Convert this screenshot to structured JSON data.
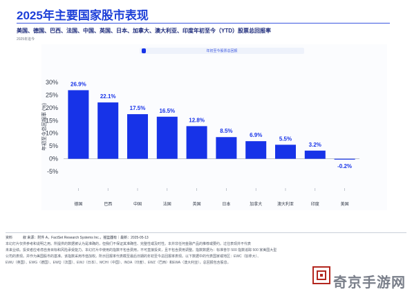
{
  "header": {
    "title": "2025年主要国家股市表现",
    "subtitle": "美国、德国、巴西、法国、中国、英国、日本、加拿大、澳大利亚、印度年初至今（YTD）股票总回报率",
    "source_note": "2025年迄今"
  },
  "footer": {
    "source": "资料　　　叙 来源：附件 A，FactSet Research Systems Inc.，摇篮器有｜最新：2025-05-13",
    "line1": "本幻灯片仅供参考和说明之用。所提供的数据被认为是准确的，但我们不保证其准确性、完整性或及时性。本并非任何金融产品的推荐或要约。过往表现并不代表",
    "line2": "未来业绩。投资者应考虑自身目标和风险承受能力。本幻灯片中使用的指数不包含费用，不可直接投资，且不包含费用调整。指数数据为：标准普尔 500 指数追踪 500 家美国大型",
    "line3": "公司的表现。并作为美国股市的基准。该指数采用市值加权。所示回报率代表截至最后日期的年初至今总回报率表现。以下数据中的代表国家或地区：EWC（加拿大）、",
    "line4": "EWU（英国）、EWG（德国）、EWQ（法国）、EWJ（日本）、MCHI（中国）、INDA（印度）、EWZ（巴西）和EWA（澳大利亚），总回报包含股息。"
  },
  "watermark": "奇京手游网",
  "colors": {
    "bar": "#1733e8",
    "axis": "#333a48",
    "title": "#1d3fd8"
  },
  "chart_data": {
    "type": "bar",
    "title": "",
    "xlabel": "",
    "ylabel": "年初至今总回报率 (%)",
    "legend": "年初至今股票总回报",
    "categories": [
      "德国",
      "巴西",
      "中国",
      "法国",
      "英国",
      "日本",
      "加拿大",
      "澳大利亚",
      "印度",
      "美国"
    ],
    "values": [
      26.9,
      22.1,
      17.5,
      16.5,
      12.8,
      8.5,
      6.9,
      5.5,
      3.2,
      -0.2
    ],
    "data_labels": [
      "26.9%",
      "22.1%",
      "17.5%",
      "16.5%",
      "12.8%",
      "8.5%",
      "6.9%",
      "5.5%",
      "3.2%",
      "-0.2%"
    ],
    "yticks": [
      30,
      25,
      20,
      15,
      10,
      5,
      0,
      -5
    ],
    "ytick_labels": [
      "30%",
      "25%",
      "20%",
      "15%",
      "10%",
      "5%",
      "0%",
      "-5%"
    ],
    "ylim": [
      -5,
      30
    ],
    "grid": false
  }
}
